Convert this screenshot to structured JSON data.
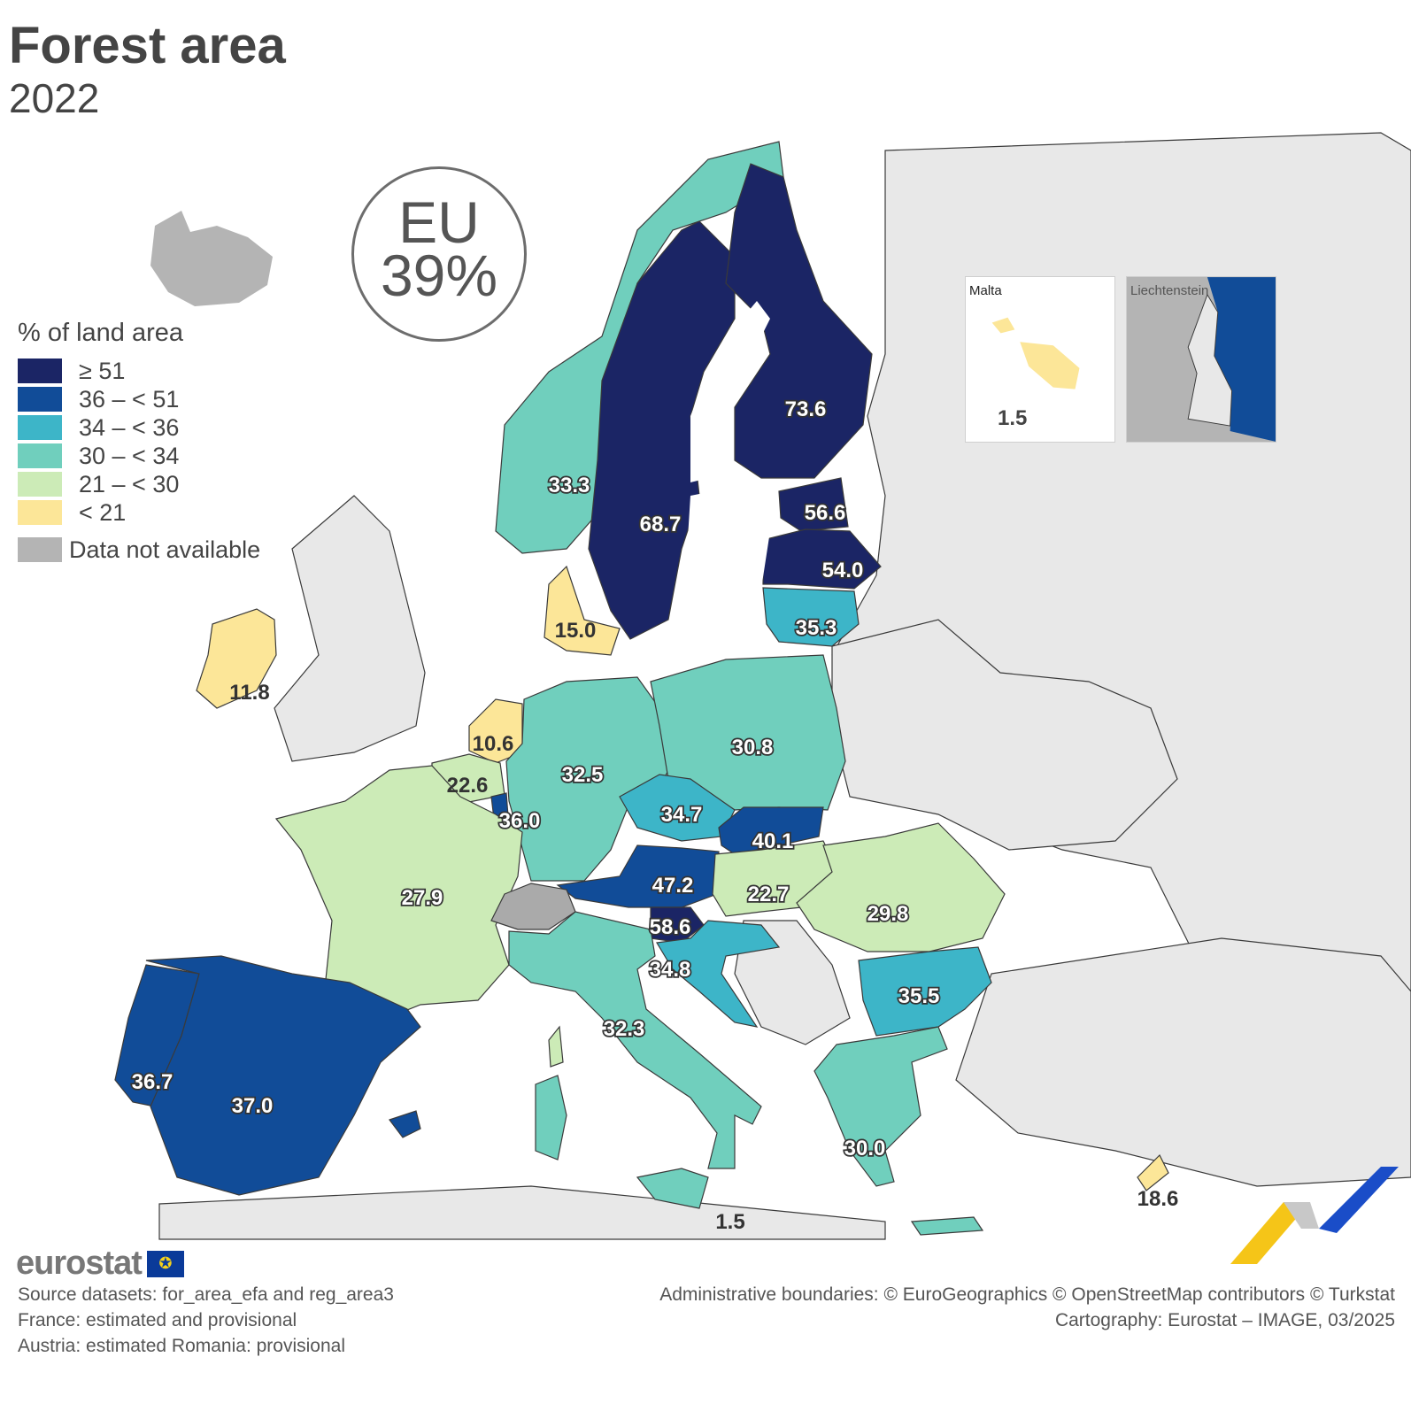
{
  "title": "Forest area",
  "subtitle": "2022",
  "eu_badge": {
    "label": "EU",
    "value": "39%"
  },
  "legend": {
    "title": "% of land area",
    "classes": [
      {
        "label": "≥ 51",
        "color": "#1b2565"
      },
      {
        "label": "36 – < 51",
        "color": "#114c98"
      },
      {
        "label": "34 – < 36",
        "color": "#3db5c8"
      },
      {
        "label": "30 – < 34",
        "color": "#70cfbd"
      },
      {
        "label": "21 – < 30",
        "color": "#ccebb7"
      },
      {
        "label": "< 21",
        "color": "#fce698"
      }
    ],
    "not_available": {
      "label": "Data not available",
      "color": "#b4b4b4"
    }
  },
  "colors": {
    "non_eu_land": "#e8e8e8",
    "sea": "#ffffff",
    "border": "#3a3a3a"
  },
  "values": {
    "finland": "73.6",
    "sweden": "68.7",
    "estonia": "56.6",
    "latvia": "54.0",
    "norway": "33.3",
    "lithuania": "35.3",
    "denmark": "15.0",
    "ireland": "11.8",
    "netherlands": "10.6",
    "belgium": "22.6",
    "luxembourg": "36.0",
    "germany": "32.5",
    "poland": "30.8",
    "czechia": "34.7",
    "slovakia": "40.1",
    "austria": "47.2",
    "hungary": "22.7",
    "romania": "29.8",
    "slovenia": "58.6",
    "croatia": "34.8",
    "bulgaria": "35.5",
    "france": "27.9",
    "italy": "32.3",
    "portugal": "36.7",
    "spain": "37.0",
    "greece": "30.0",
    "malta": "1.5",
    "cyprus": "18.6"
  },
  "insets": {
    "malta": {
      "name": "Malta",
      "value": "1.5"
    },
    "liechtenstein": {
      "name": "Liechtenstein"
    }
  },
  "logo": "eurostat",
  "source_lines": [
    "Source datasets: for_area_efa and reg_area3",
    "France: estimated and provisional",
    "Austria: estimated Romania: provisional"
  ],
  "credit_lines": [
    "Administrative boundaries: © EuroGeographics © OpenStreetMap contributors © Turkstat",
    "Cartography: Eurostat – IMAGE, 03/2025"
  ]
}
